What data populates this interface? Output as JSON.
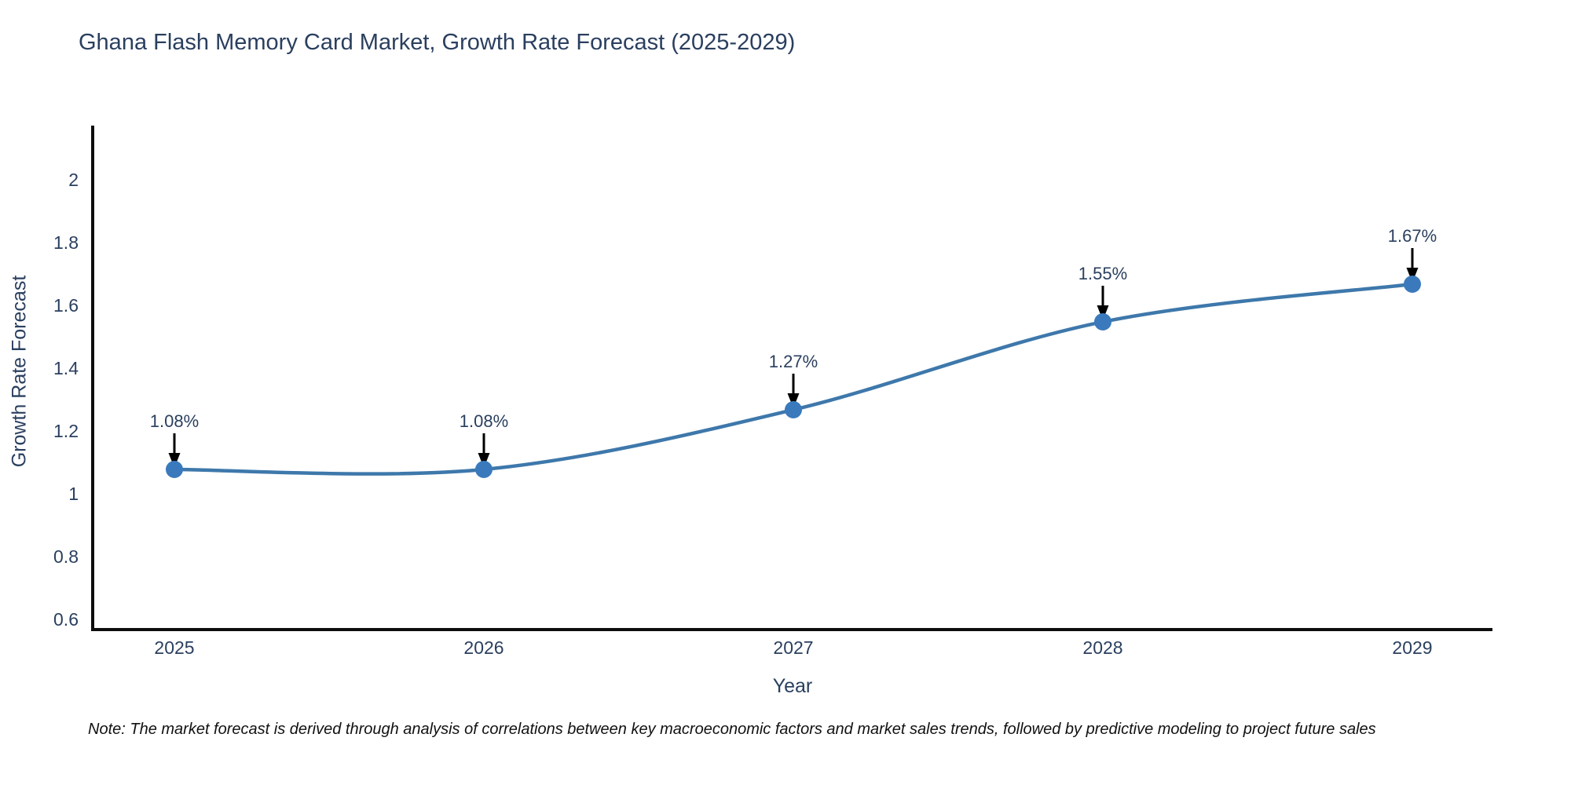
{
  "title": "Ghana Flash Memory Card Market, Growth Rate Forecast (2025-2029)",
  "note": "Note: The market forecast is derived through analysis of correlations between key macroeconomic factors and market sales trends, followed by predictive modeling to project future sales",
  "colors": {
    "title_text": "#2a3f5f",
    "tick_text": "#2a3f5f",
    "annotation_text": "#2a3f5f",
    "line": "#3e78ab",
    "marker": "#3a7abc",
    "axis_line": "#0d0d0d",
    "arrow": "#000000",
    "note_text": "#111111",
    "background": "#ffffff"
  },
  "chart_data": {
    "type": "line",
    "title": "Ghana Flash Memory Card Market, Growth Rate Forecast (2025-2029)",
    "xlabel": "Year",
    "ylabel": "Growth Rate Forecast",
    "x": [
      2025,
      2026,
      2027,
      2028,
      2029
    ],
    "series": [
      {
        "name": "Growth Rate Forecast",
        "values": [
          1.08,
          1.08,
          1.27,
          1.55,
          1.67
        ]
      }
    ],
    "point_labels": [
      "1.08%",
      "1.08%",
      "1.27%",
      "1.55%",
      "1.67%"
    ],
    "x_tick_labels": [
      "2025",
      "2026",
      "2027",
      "2028",
      "2029"
    ],
    "y_tick_values": [
      0.6,
      0.8,
      1,
      1.2,
      1.4,
      1.6,
      1.8,
      2
    ],
    "y_tick_labels": [
      "0.6",
      "0.8",
      "1",
      "1.2",
      "1.4",
      "1.6",
      "1.8",
      "2"
    ],
    "ylim": [
      0.595,
      2.205
    ],
    "grid": false,
    "legend": false,
    "line_shape": "spline",
    "annotations_arrow": true
  }
}
